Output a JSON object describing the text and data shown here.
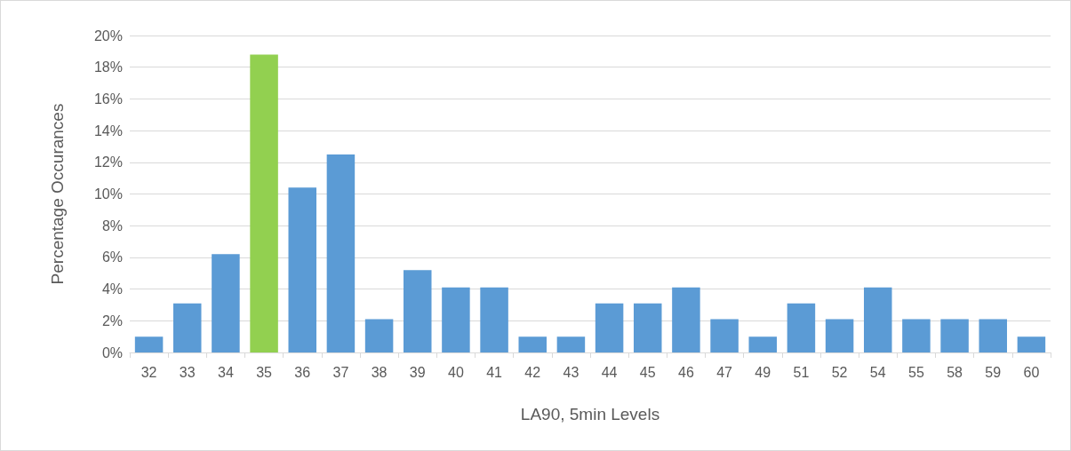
{
  "chart_data": {
    "type": "bar",
    "xlabel": "LA90, 5min Levels",
    "ylabel": "Percentage Occurances",
    "categories": [
      "32",
      "33",
      "34",
      "35",
      "36",
      "37",
      "38",
      "39",
      "40",
      "41",
      "42",
      "43",
      "44",
      "45",
      "46",
      "47",
      "49",
      "51",
      "52",
      "54",
      "55",
      "58",
      "59",
      "60"
    ],
    "values": [
      1.0,
      3.1,
      6.2,
      18.8,
      10.4,
      12.5,
      2.1,
      5.2,
      4.1,
      4.1,
      1.0,
      1.0,
      3.1,
      3.1,
      4.1,
      2.1,
      1.0,
      3.1,
      2.1,
      4.1,
      2.1,
      2.1,
      2.1,
      1.0
    ],
    "colors": [
      "#5b9bd5",
      "#5b9bd5",
      "#5b9bd5",
      "#92d050",
      "#5b9bd5",
      "#5b9bd5",
      "#5b9bd5",
      "#5b9bd5",
      "#5b9bd5",
      "#5b9bd5",
      "#5b9bd5",
      "#5b9bd5",
      "#5b9bd5",
      "#5b9bd5",
      "#5b9bd5",
      "#5b9bd5",
      "#5b9bd5",
      "#5b9bd5",
      "#5b9bd5",
      "#5b9bd5",
      "#5b9bd5",
      "#5b9bd5",
      "#5b9bd5",
      "#5b9bd5"
    ],
    "ylim": [
      0,
      20
    ],
    "yticks": [
      {
        "value": 0,
        "label": "0%"
      },
      {
        "value": 2,
        "label": "2%"
      },
      {
        "value": 4,
        "label": "4%"
      },
      {
        "value": 6,
        "label": "6%"
      },
      {
        "value": 8,
        "label": "8%"
      },
      {
        "value": 10,
        "label": "10%"
      },
      {
        "value": 12,
        "label": "12%"
      },
      {
        "value": 14,
        "label": "14%"
      },
      {
        "value": 16,
        "label": "16%"
      },
      {
        "value": 18,
        "label": "18%"
      },
      {
        "value": 20,
        "label": "20%"
      }
    ],
    "grid": "y"
  }
}
